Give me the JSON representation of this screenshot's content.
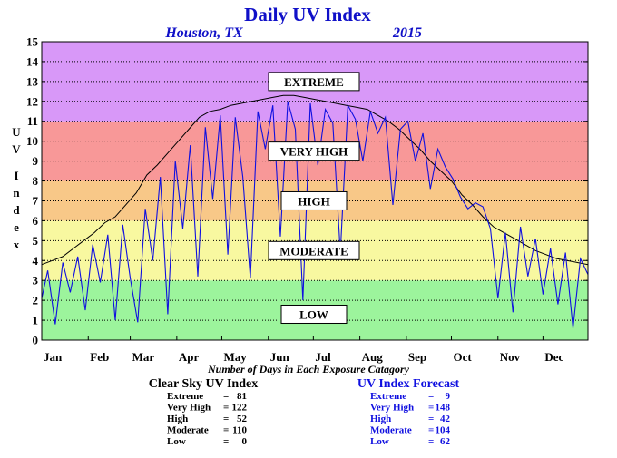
{
  "chart_data": {
    "type": "line",
    "title": "Daily UV Index",
    "location": "Houston, TX",
    "year": "2015",
    "ylabel": "UV Index",
    "ylim": [
      0,
      15
    ],
    "yticks": [
      "0",
      "1",
      "2",
      "3",
      "4",
      "5",
      "6",
      "7",
      "8",
      "9",
      "10",
      "11",
      "12",
      "13",
      "14",
      "15"
    ],
    "x_months": [
      "Jan",
      "Feb",
      "Mar",
      "Apr",
      "May",
      "Jun",
      "Jul",
      "Aug",
      "Sep",
      "Oct",
      "Nov",
      "Dec"
    ],
    "month_start_days": [
      1,
      32,
      60,
      91,
      121,
      152,
      182,
      213,
      244,
      274,
      305,
      335
    ],
    "xlim_days": [
      1,
      365
    ],
    "grid": true,
    "bands": [
      {
        "label": "LOW",
        "from": 0,
        "to": 3,
        "color": "#9cf49c"
      },
      {
        "label": "MODERATE",
        "from": 3,
        "to": 6,
        "color": "#f8f8a0"
      },
      {
        "label": "HIGH",
        "from": 6,
        "to": 8,
        "color": "#f8c888"
      },
      {
        "label": "VERY HIGH",
        "from": 8,
        "to": 11,
        "color": "#f89898"
      },
      {
        "label": "EXTREME",
        "from": 11,
        "to": 15,
        "color": "#d898f8"
      }
    ],
    "series": [
      {
        "name": "Clear Sky UV Index",
        "color": "#000000",
        "x": [
          1,
          8,
          15,
          22,
          29,
          36,
          43,
          50,
          57,
          64,
          71,
          78,
          85,
          92,
          99,
          106,
          113,
          120,
          127,
          134,
          141,
          148,
          155,
          162,
          169,
          176,
          183,
          190,
          197,
          204,
          211,
          218,
          225,
          232,
          239,
          246,
          253,
          260,
          267,
          274,
          281,
          288,
          295,
          302,
          309,
          316,
          323,
          330,
          337,
          344,
          351,
          358,
          365
        ],
        "y": [
          3.8,
          4.0,
          4.2,
          4.6,
          5.0,
          5.4,
          5.9,
          6.2,
          6.8,
          7.4,
          8.3,
          8.8,
          9.4,
          10.0,
          10.6,
          11.2,
          11.5,
          11.6,
          11.8,
          11.9,
          12.0,
          12.1,
          12.2,
          12.3,
          12.3,
          12.2,
          12.1,
          12.0,
          11.9,
          11.8,
          11.7,
          11.6,
          11.3,
          11.0,
          10.6,
          10.1,
          9.6,
          9.0,
          8.5,
          8.0,
          7.3,
          6.8,
          6.2,
          5.7,
          5.4,
          5.1,
          4.8,
          4.5,
          4.3,
          4.1,
          4.0,
          3.9,
          3.8
        ]
      },
      {
        "name": "UV Index Forecast",
        "color": "#1010e0",
        "x": [
          1,
          5,
          10,
          15,
          20,
          25,
          30,
          35,
          40,
          45,
          50,
          55,
          60,
          65,
          70,
          75,
          80,
          85,
          90,
          95,
          100,
          105,
          110,
          115,
          120,
          125,
          130,
          135,
          140,
          145,
          150,
          155,
          160,
          165,
          170,
          175,
          180,
          185,
          190,
          195,
          200,
          205,
          210,
          215,
          220,
          225,
          230,
          235,
          240,
          245,
          250,
          255,
          260,
          265,
          270,
          275,
          280,
          285,
          290,
          295,
          300,
          305,
          310,
          315,
          320,
          325,
          330,
          335,
          340,
          345,
          350,
          355,
          360,
          365
        ],
        "y": [
          2.1,
          3.5,
          0.8,
          3.9,
          2.4,
          4.2,
          1.5,
          4.8,
          2.9,
          5.3,
          1.0,
          5.8,
          3.1,
          0.9,
          6.6,
          4.0,
          8.2,
          1.3,
          9.0,
          5.6,
          9.8,
          3.2,
          10.7,
          7.1,
          11.3,
          4.3,
          11.2,
          8.2,
          3.1,
          11.5,
          9.6,
          11.8,
          5.2,
          12.0,
          10.6,
          2.0,
          11.9,
          8.8,
          11.6,
          10.9,
          4.4,
          11.8,
          11.1,
          9.0,
          11.5,
          10.4,
          11.2,
          6.8,
          10.6,
          11.0,
          9.0,
          10.4,
          7.6,
          9.6,
          8.7,
          8.1,
          7.2,
          6.6,
          6.9,
          6.7,
          5.6,
          2.1,
          5.4,
          1.4,
          5.7,
          3.2,
          5.1,
          2.3,
          4.6,
          1.8,
          4.4,
          0.6,
          4.1,
          3.3
        ]
      }
    ]
  },
  "caption": "Number of Days in Each Exposure Catagory",
  "summary": [
    {
      "title": "Clear Sky UV Index",
      "color": "#000000",
      "rows": [
        {
          "label": "Extreme",
          "sep": "=",
          "value": "81"
        },
        {
          "label": "Very High",
          "sep": "=",
          "value": "122"
        },
        {
          "label": "High",
          "sep": "=",
          "value": "52"
        },
        {
          "label": "Moderate",
          "sep": "=",
          "value": "110"
        },
        {
          "label": "Low",
          "sep": "=",
          "value": "0"
        }
      ]
    },
    {
      "title": "UV Index Forecast",
      "color": "#1010e0",
      "rows": [
        {
          "label": "Extreme",
          "sep": "=",
          "value": "9"
        },
        {
          "label": "Very High",
          "sep": "=",
          "value": "148"
        },
        {
          "label": "High",
          "sep": "=",
          "value": "42"
        },
        {
          "label": "Moderate",
          "sep": "=",
          "value": "104"
        },
        {
          "label": "Low",
          "sep": "=",
          "value": "62"
        }
      ]
    }
  ]
}
